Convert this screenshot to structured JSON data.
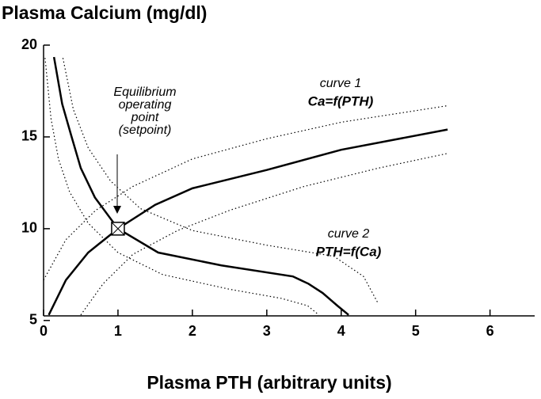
{
  "chart_data": {
    "type": "line",
    "title": "Plasma Calcium (mg/dl)",
    "x_label": "Plasma PTH (arbitrary units)",
    "xlim": [
      0,
      6.6
    ],
    "xticks": [
      0,
      1,
      2,
      3,
      4,
      5,
      6
    ],
    "ylim": [
      5.25,
      20
    ],
    "yticks": [
      5,
      10,
      15,
      20
    ],
    "series": [
      {
        "style": "solid",
        "color": "#000000",
        "x": [
          0.07,
          0.3,
          0.6,
          1,
          1.5,
          2,
          3,
          4,
          5.43
        ],
        "values": [
          5.3,
          7.2,
          8.7,
          10,
          11.3,
          12.2,
          13.2,
          14.3,
          15.4
        ]
      },
      {
        "style": "solid",
        "color": "#000000",
        "x": [
          0.14,
          0.25,
          0.37,
          0.5,
          0.69,
          1,
          1.54,
          2.39,
          3.35,
          3.56,
          3.75,
          3.95,
          4.1
        ],
        "values": [
          19.35,
          16.8,
          15.1,
          13.3,
          11.7,
          10,
          8.7,
          8.0,
          7.4,
          7.0,
          6.5,
          5.8,
          5.3
        ]
      },
      {
        "style": "dotted",
        "color": "#000000",
        "x": [
          0.0,
          0.3,
          0.7,
          1.2,
          2,
          3,
          4,
          5.43
        ],
        "values": [
          7.2,
          9.4,
          11.0,
          12.3,
          13.8,
          14.9,
          15.8,
          16.7
        ]
      },
      {
        "style": "dotted",
        "color": "#000000",
        "x": [
          0.5,
          0.8,
          1.2,
          1.8,
          2.5,
          3.5,
          4.5,
          5.43
        ],
        "values": [
          5.3,
          7.0,
          8.6,
          9.9,
          11.0,
          12.3,
          13.3,
          14.1
        ]
      },
      {
        "style": "dotted",
        "color": "#000000",
        "x": [
          0.02,
          0.1,
          0.2,
          0.35,
          0.6,
          1.0,
          1.6,
          2.5,
          3.2,
          3.55,
          3.7
        ],
        "values": [
          19.3,
          16.0,
          13.8,
          12.0,
          10.3,
          8.7,
          7.5,
          6.7,
          6.2,
          5.8,
          5.3
        ]
      },
      {
        "style": "dotted",
        "color": "#000000",
        "x": [
          0.26,
          0.4,
          0.6,
          0.9,
          1.3,
          2.0,
          3.0,
          3.9,
          4.3,
          4.5
        ],
        "values": [
          19.3,
          16.5,
          14.4,
          12.6,
          11.1,
          9.9,
          9.1,
          8.5,
          7.4,
          5.9
        ]
      }
    ],
    "marker": {
      "x": 1,
      "y": 10
    },
    "annotations": {
      "setpoint": [
        "Equilibrium",
        "operating",
        "point",
        "(setpoint)"
      ],
      "curve1": [
        "curve 1",
        "Ca=f(PTH)"
      ],
      "curve2": [
        "curve 2",
        "PTH=f(Ca)"
      ]
    }
  }
}
